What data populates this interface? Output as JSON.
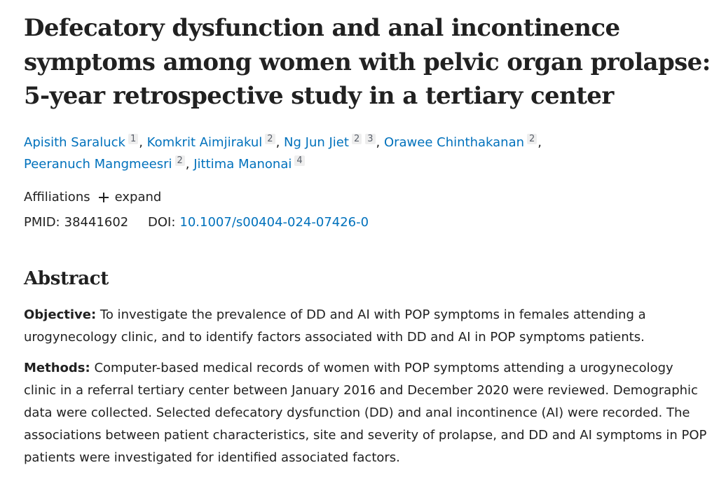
{
  "article": {
    "title": "Defecatory dysfunction and anal incontinence symptoms among women with pelvic organ prolapse: 5-year retrospective study in a tertiary center",
    "authors": [
      {
        "name": "Apisith Saraluck",
        "sup": "1"
      },
      {
        "name": "Komkrit Aimjirakul",
        "sup": "2"
      },
      {
        "name": "Ng Jun Jiet",
        "sup1": "2",
        "sup2": "3"
      },
      {
        "name": "Orawee Chinthakanan",
        "sup": "2"
      },
      {
        "name": "Peeranuch Mangmeesri",
        "sup": "2"
      },
      {
        "name": "Jittima Manonai",
        "sup": "4"
      }
    ],
    "affiliations_label": "Affiliations",
    "expand_label": "expand",
    "pmid_label": "PMID:",
    "pmid": "38441602",
    "doi_label": "DOI:",
    "doi": "10.1007/s00404-024-07426-0"
  },
  "abstract": {
    "heading": "Abstract",
    "objective_label": "Objective:",
    "objective_text": "To investigate the prevalence of DD and AI with POP symptoms in females attending a urogynecology clinic, and to identify factors associated with DD and AI in POP symptoms patients.",
    "methods_label": "Methods:",
    "methods_text": "Computer-based medical records of women with POP symptoms attending a urogynecology clinic in a referral tertiary center between January 2016 and December 2020 were reviewed. Demographic data were collected. Selected defecatory dysfunction (DD) and anal incontinence (AI) were recorded. The associations between patient characteristics, site and severity of prolapse, and DD and AI symptoms in POP patients were investigated for identified associated factors."
  }
}
